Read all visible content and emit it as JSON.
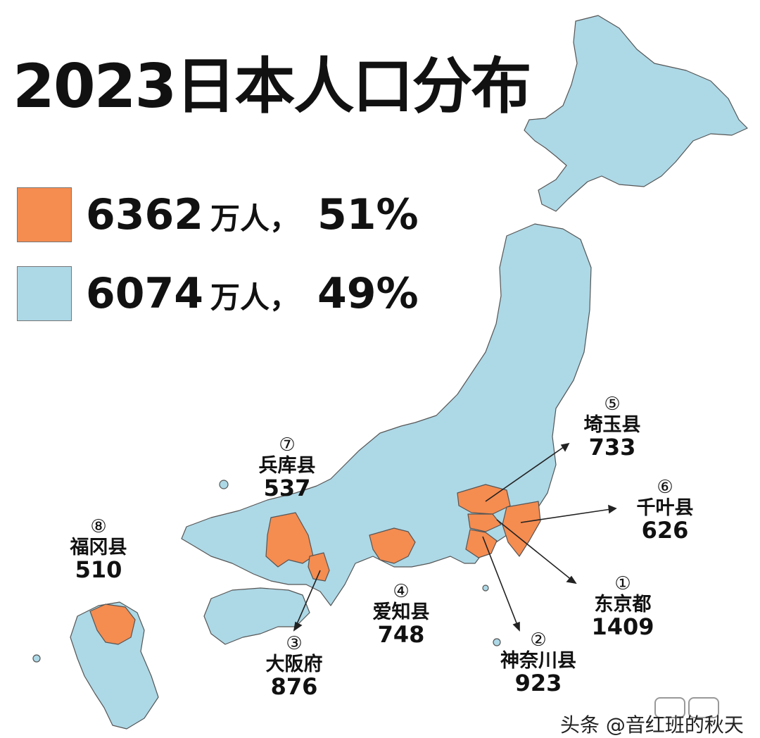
{
  "title": "2023日本人口分布",
  "colors": {
    "highlight": "#F58C50",
    "rest": "#ADD8E6",
    "border": "#555555",
    "text": "#111111"
  },
  "legend": [
    {
      "number": "6362",
      "unit": "万人，",
      "percent": "51%",
      "color": "#F58C50"
    },
    {
      "number": "6074",
      "unit": "万人，",
      "percent": "49%",
      "color": "#ADD8E6"
    }
  ],
  "prefectures": [
    {
      "rank": "①",
      "name": "东京都",
      "value": "1409"
    },
    {
      "rank": "②",
      "name": "神奈川县",
      "value": "923"
    },
    {
      "rank": "③",
      "name": "大阪府",
      "value": "876"
    },
    {
      "rank": "④",
      "name": "爱知县",
      "value": "748"
    },
    {
      "rank": "⑤",
      "name": "埼玉县",
      "value": "733"
    },
    {
      "rank": "⑥",
      "name": "千叶县",
      "value": "626"
    },
    {
      "rank": "⑦",
      "name": "兵库县",
      "value": "537"
    },
    {
      "rank": "⑧",
      "name": "福冈县",
      "value": "510"
    }
  ],
  "watermark": "头条 @音红班的秋天"
}
